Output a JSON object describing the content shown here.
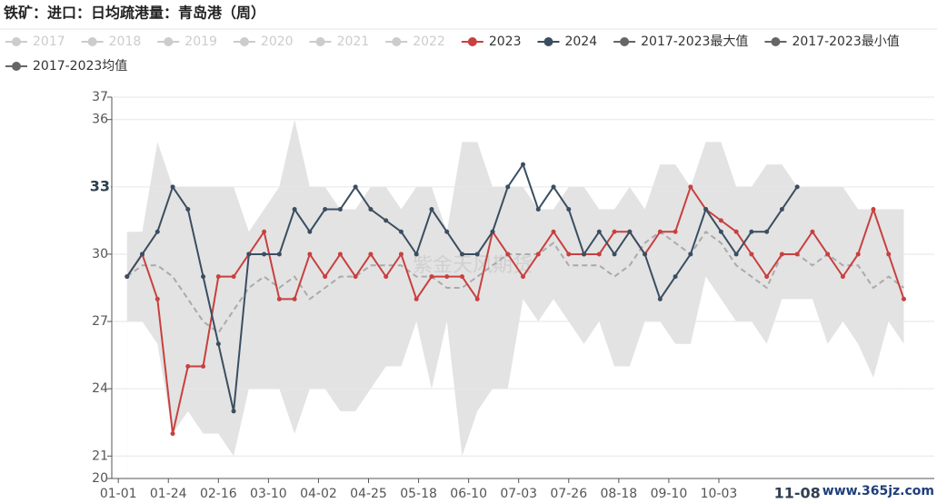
{
  "chart_data": {
    "type": "line",
    "title": "铁矿：进口：日均疏港量：青岛港（周）",
    "x": [
      4,
      11,
      18,
      25,
      32,
      39,
      46,
      53,
      60,
      67,
      74,
      81,
      88,
      95,
      102,
      109,
      116,
      123,
      130,
      137,
      144,
      151,
      158,
      165,
      172,
      179,
      186,
      193,
      200,
      207,
      214,
      221,
      228,
      235,
      242,
      249,
      256,
      263,
      270,
      277,
      284,
      291,
      298,
      305,
      312,
      319,
      326,
      333,
      340,
      347,
      354,
      361
    ],
    "xlim": [
      -3,
      375
    ],
    "xticks": [
      {
        "value": 0,
        "label": "01-01"
      },
      {
        "value": 23,
        "label": "01-24"
      },
      {
        "value": 46,
        "label": "02-16"
      },
      {
        "value": 69,
        "label": "03-10"
      },
      {
        "value": 92,
        "label": "04-02"
      },
      {
        "value": 115,
        "label": "04-25"
      },
      {
        "value": 138,
        "label": "05-18"
      },
      {
        "value": 161,
        "label": "06-10"
      },
      {
        "value": 184,
        "label": "07-03"
      },
      {
        "value": 207,
        "label": "07-26"
      },
      {
        "value": 230,
        "label": "08-18"
      },
      {
        "value": 253,
        "label": "09-10"
      },
      {
        "value": 276,
        "label": "10-03"
      }
    ],
    "ylim": [
      20,
      37
    ],
    "yticks": [
      20,
      21,
      24,
      27,
      30,
      33,
      36,
      37
    ],
    "grid": true,
    "axis_pointer": {
      "x": {
        "value": 312,
        "label": "11-08"
      },
      "y": 33
    },
    "inactive_series": [
      {
        "name": "2017",
        "color": "#cccccc"
      },
      {
        "name": "2018",
        "color": "#cccccc"
      },
      {
        "name": "2019",
        "color": "#cccccc"
      },
      {
        "name": "2020",
        "color": "#cccccc"
      },
      {
        "name": "2021",
        "color": "#cccccc"
      },
      {
        "name": "2022",
        "color": "#cccccc"
      }
    ],
    "series": [
      {
        "name": "2023",
        "color": "#c8403f",
        "style": "line",
        "values": [
          29,
          30,
          28,
          22,
          25,
          25,
          29,
          29,
          30,
          31,
          28,
          28,
          30,
          29,
          30,
          29,
          30,
          29,
          30,
          28,
          29,
          29,
          29,
          28,
          31,
          30,
          29,
          30,
          31,
          30,
          30,
          30,
          31,
          31,
          30,
          31,
          31,
          33,
          32,
          31.5,
          31,
          30,
          29,
          30,
          30,
          31,
          30,
          29,
          30,
          32,
          30,
          28
        ]
      },
      {
        "name": "2024",
        "color": "#3b4e61",
        "style": "line",
        "values": [
          29,
          30,
          31,
          33,
          32,
          29,
          26,
          23,
          30,
          30,
          30,
          32,
          31,
          32,
          32,
          33,
          32,
          31.5,
          31,
          30,
          32,
          31,
          30,
          30,
          31,
          33,
          34,
          32,
          33,
          32,
          30,
          31,
          30,
          31,
          30,
          28,
          29,
          30,
          32,
          31,
          30,
          31,
          31,
          32,
          33,
          null,
          null,
          null,
          null,
          null,
          null,
          null
        ]
      },
      {
        "name": "2017-2023最大值",
        "color": "#666666",
        "style": "band_top",
        "fill": "#e3e3e3",
        "values": [
          31,
          31,
          35,
          33,
          33,
          33,
          33,
          33,
          31,
          32,
          33,
          36,
          33,
          33,
          32,
          32,
          33,
          33,
          32,
          33,
          33,
          31,
          35,
          35,
          33,
          33,
          33,
          32,
          32,
          33,
          33,
          32,
          32,
          33,
          32,
          34,
          34,
          33,
          35,
          35,
          33,
          33,
          34,
          34,
          33,
          33,
          33,
          33,
          32,
          32,
          32,
          32
        ]
      },
      {
        "name": "2017-2023最小值",
        "color": "#666666",
        "style": "band_bottom",
        "fill": "#ffffff",
        "values": [
          27,
          27,
          26,
          22,
          23,
          22,
          22,
          21,
          24,
          24,
          24,
          22,
          24,
          24,
          23,
          23,
          24,
          25,
          25,
          27,
          24,
          27,
          21,
          23,
          24,
          24,
          28,
          27,
          28,
          27,
          26,
          27,
          25,
          25,
          27,
          27,
          26,
          26,
          29,
          28,
          27,
          27,
          26,
          28,
          28,
          28,
          26,
          27,
          26,
          24.5,
          27,
          26
        ]
      },
      {
        "name": "2017-2023均值",
        "color": "#666666",
        "style": "dashed",
        "line_color": "#aaaaaa",
        "values": [
          29,
          29.5,
          29.5,
          29,
          28,
          27,
          26.5,
          27.5,
          28.5,
          29,
          28.5,
          29,
          28,
          28.5,
          29,
          29,
          29.5,
          29.5,
          29.5,
          29,
          29,
          28.5,
          28.5,
          29,
          29.5,
          30,
          30,
          30,
          30.5,
          29.5,
          29.5,
          29.5,
          29,
          29.5,
          30.5,
          31,
          30.5,
          30,
          31,
          30.5,
          29.5,
          29,
          28.5,
          30,
          30,
          29.5,
          30,
          29.5,
          29.5,
          28.5,
          29,
          28.5
        ]
      }
    ],
    "annotations": [
      "紫金天风期货",
      "www.365jz.com"
    ]
  }
}
